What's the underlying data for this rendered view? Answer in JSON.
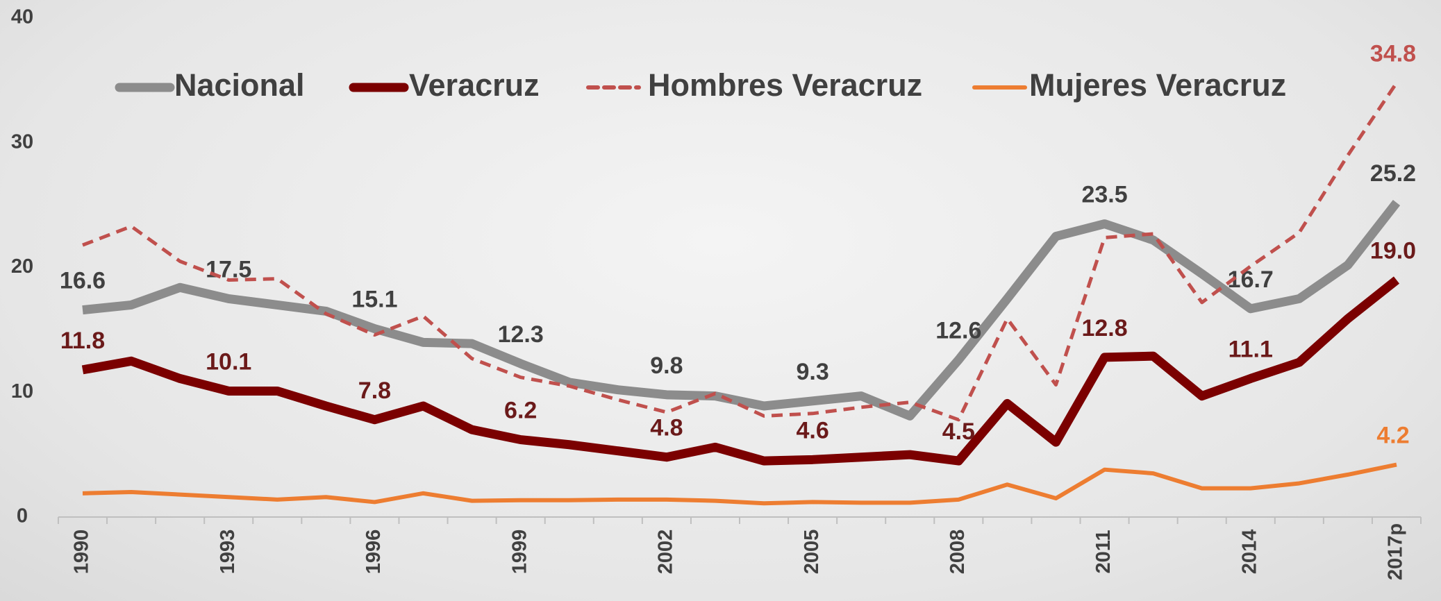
{
  "chart_data": {
    "type": "line",
    "categories": [
      "1990",
      null,
      null,
      "1993",
      null,
      null,
      "1996",
      null,
      null,
      "1999",
      null,
      null,
      "2002",
      null,
      null,
      "2005",
      null,
      null,
      "2008",
      null,
      null,
      "2011",
      null,
      null,
      "2014",
      null,
      null,
      "2017p"
    ],
    "ylim": [
      0,
      40
    ],
    "yticks": [
      0,
      10,
      20,
      30,
      40
    ],
    "grid": false,
    "legend": "top",
    "series": [
      {
        "name": "Nacional",
        "color": "#8c8c8c",
        "label_color": "#404040",
        "dash": false,
        "values": [
          16.6,
          17.0,
          18.4,
          17.5,
          17.0,
          16.5,
          15.1,
          14.0,
          13.9,
          12.3,
          10.8,
          10.2,
          9.8,
          9.7,
          8.9,
          9.3,
          9.7,
          8.1,
          12.6,
          17.5,
          22.5,
          23.5,
          22.2,
          19.5,
          16.7,
          17.5,
          20.2,
          25.2
        ],
        "value_labels": [
          "16.6",
          null,
          null,
          "17.5",
          null,
          null,
          "15.1",
          null,
          null,
          "12.3",
          null,
          null,
          "9.8",
          null,
          null,
          "9.3",
          null,
          null,
          "12.6",
          null,
          null,
          "23.5",
          null,
          null,
          "16.7",
          null,
          null,
          "25.2"
        ]
      },
      {
        "name": "Veracruz",
        "color": "#7b0000",
        "label_color": "#6b1a1a",
        "dash": false,
        "values": [
          11.8,
          12.5,
          11.1,
          10.1,
          10.1,
          8.9,
          7.8,
          8.9,
          7.0,
          6.2,
          5.8,
          5.3,
          4.8,
          5.6,
          4.5,
          4.6,
          4.8,
          5.0,
          4.5,
          9.1,
          6.0,
          12.8,
          12.9,
          9.7,
          11.1,
          12.4,
          15.9,
          19.0
        ],
        "value_labels": [
          "11.8",
          null,
          null,
          "10.1",
          null,
          null,
          "7.8",
          null,
          null,
          "6.2",
          null,
          null,
          "4.8",
          null,
          null,
          "4.6",
          null,
          null,
          "4.5",
          null,
          null,
          "12.8",
          null,
          null,
          "11.1",
          null,
          null,
          "19.0"
        ]
      },
      {
        "name": "Hombres Veracruz",
        "color": "#c0504d",
        "label_color": "#c0504d",
        "dash": true,
        "values": [
          21.8,
          23.3,
          20.5,
          19.0,
          19.1,
          16.3,
          14.6,
          16.1,
          12.7,
          11.2,
          10.5,
          9.4,
          8.4,
          9.9,
          8.1,
          8.3,
          8.8,
          9.2,
          7.8,
          15.9,
          10.6,
          22.4,
          22.7,
          17.2,
          20.1,
          22.8,
          29.0,
          34.8
        ],
        "value_labels": [
          null,
          null,
          null,
          null,
          null,
          null,
          null,
          null,
          null,
          null,
          null,
          null,
          null,
          null,
          null,
          null,
          null,
          null,
          null,
          null,
          null,
          null,
          null,
          null,
          null,
          null,
          null,
          "34.8"
        ]
      },
      {
        "name": "Mujeres Veracruz",
        "color": "#ed7d31",
        "label_color": "#ed7d31",
        "dash": false,
        "values": [
          1.9,
          2.0,
          1.8,
          1.6,
          1.4,
          1.6,
          1.2,
          1.9,
          1.3,
          1.35,
          1.35,
          1.4,
          1.4,
          1.3,
          1.1,
          1.2,
          1.15,
          1.15,
          1.4,
          2.6,
          1.5,
          3.8,
          3.5,
          2.3,
          2.3,
          2.7,
          3.4,
          4.2
        ],
        "value_labels": [
          null,
          null,
          null,
          null,
          null,
          null,
          null,
          null,
          null,
          null,
          null,
          null,
          null,
          null,
          null,
          null,
          null,
          null,
          null,
          null,
          null,
          null,
          null,
          null,
          null,
          null,
          null,
          "4.2"
        ]
      }
    ]
  }
}
